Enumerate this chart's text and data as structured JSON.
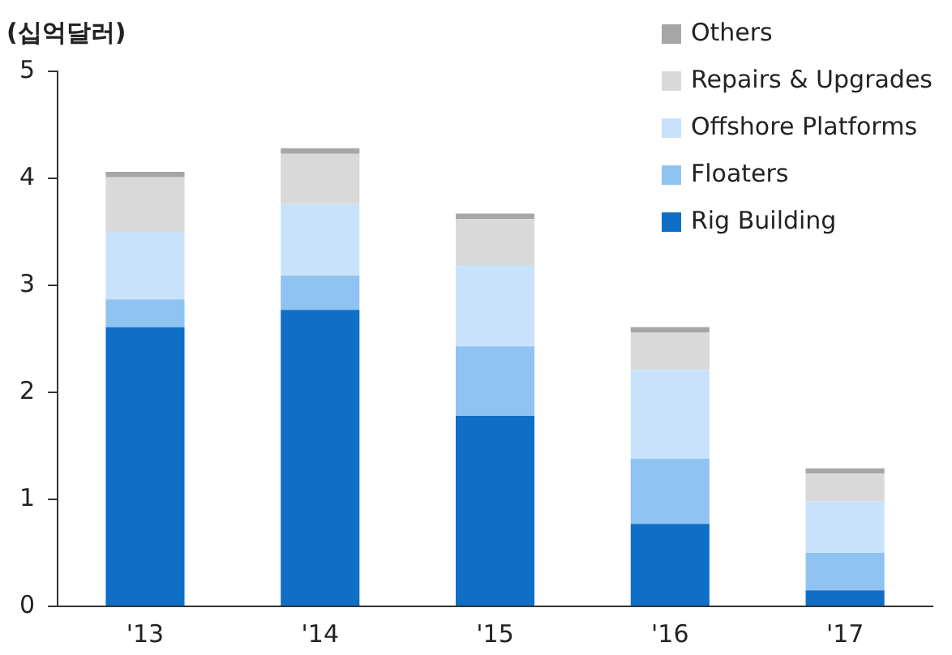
{
  "chart_data": {
    "type": "bar",
    "stacked": true,
    "ylabel": "(십억달러)",
    "categories": [
      "'13",
      "'14",
      "'15",
      "'16",
      "'17"
    ],
    "series": [
      {
        "name": "Rig Building",
        "color": "#0f6fc6",
        "values": [
          2.61,
          2.77,
          1.78,
          0.77,
          0.15
        ]
      },
      {
        "name": "Floaters",
        "color": "#8fc3f2",
        "values": [
          0.26,
          0.32,
          0.65,
          0.61,
          0.35
        ]
      },
      {
        "name": "Offshore Platforms",
        "color": "#c9e2fb",
        "values": [
          0.63,
          0.67,
          0.76,
          0.83,
          0.48
        ]
      },
      {
        "name": "Repairs & Upgrades",
        "color": "#d9d9d9",
        "values": [
          0.51,
          0.47,
          0.43,
          0.35,
          0.26
        ]
      },
      {
        "name": "Others",
        "color": "#a6a6a6",
        "values": [
          0.05,
          0.05,
          0.05,
          0.05,
          0.05
        ]
      }
    ],
    "ylim": [
      0,
      5
    ],
    "yticks": [
      0,
      1,
      2,
      3,
      4,
      5
    ],
    "grid": false,
    "legend": "top right"
  }
}
